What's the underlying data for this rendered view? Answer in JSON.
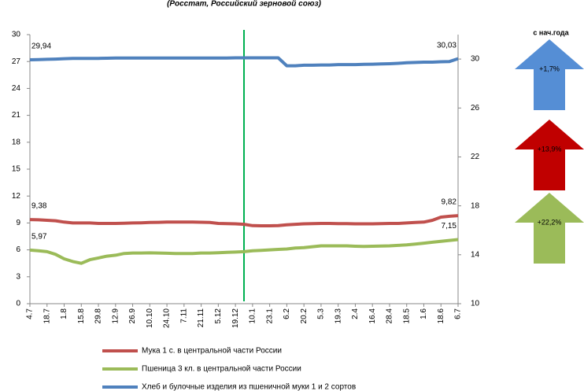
{
  "chart_data": {
    "type": "line",
    "subtitle": "(Росстат, Российский зерновой союз)",
    "categories": [
      "4.7",
      null,
      "18.7",
      null,
      "1.8",
      null,
      "15.8",
      null,
      "29.8",
      null,
      "12.9",
      null,
      "26.9",
      null,
      "10.10",
      null,
      "24.10",
      null,
      "7.11",
      null,
      "21.11",
      null,
      "5.12",
      null,
      "19.12",
      null,
      "10.1",
      null,
      "23.1",
      null,
      "6.2",
      null,
      "20.2",
      null,
      "5.3",
      null,
      "19.3",
      null,
      "2.4",
      null,
      "16.4",
      null,
      "28.4",
      null,
      "18.5",
      null,
      "1.6",
      null,
      "18.6",
      null,
      "6.7"
    ],
    "ylim": [
      0,
      30
    ],
    "yticks": [
      0,
      3,
      6,
      9,
      12,
      15,
      18,
      21,
      24,
      27,
      30
    ],
    "y2lim": [
      10,
      32
    ],
    "y2ticks": [
      10,
      14,
      18,
      22,
      26,
      30
    ],
    "series": [
      {
        "name": "Мука 1 с. в центральной части России",
        "color": "#c0504d",
        "values": [
          9.38,
          9.35,
          9.3,
          9.25,
          9.1,
          9.0,
          9.0,
          9.0,
          8.95,
          8.95,
          8.95,
          8.97,
          9.0,
          9.02,
          9.05,
          9.07,
          9.1,
          9.1,
          9.1,
          9.1,
          9.08,
          9.05,
          8.95,
          8.92,
          8.9,
          8.85,
          8.7,
          8.68,
          8.68,
          8.7,
          8.8,
          8.85,
          8.9,
          8.92,
          8.95,
          8.95,
          8.93,
          8.92,
          8.9,
          8.9,
          8.9,
          8.92,
          8.95,
          8.95,
          9.0,
          9.05,
          9.1,
          9.3,
          9.65,
          9.75,
          9.82
        ],
        "value_labels": [
          "9,38",
          null,
          null,
          null,
          null,
          null,
          null,
          null,
          null,
          null,
          null,
          null,
          null,
          null,
          null,
          null,
          null,
          null,
          null,
          null,
          null,
          null,
          null,
          null,
          null,
          null,
          null,
          null,
          null,
          null,
          null,
          null,
          null,
          null,
          null,
          null,
          null,
          null,
          null,
          null,
          null,
          null,
          null,
          null,
          null,
          null,
          null,
          null,
          null,
          null,
          "9,82"
        ]
      },
      {
        "name": "Пшеница 3 кл. в центральной части России",
        "color": "#9bbb59",
        "values": [
          5.97,
          5.9,
          5.8,
          5.5,
          5.0,
          4.7,
          4.5,
          4.9,
          5.1,
          5.3,
          5.4,
          5.6,
          5.65,
          5.65,
          5.67,
          5.65,
          5.62,
          5.6,
          5.6,
          5.6,
          5.65,
          5.65,
          5.68,
          5.72,
          5.75,
          5.8,
          5.9,
          5.95,
          6.0,
          6.05,
          6.1,
          6.2,
          6.25,
          6.35,
          6.45,
          6.45,
          6.45,
          6.45,
          6.4,
          6.38,
          6.4,
          6.42,
          6.45,
          6.5,
          6.55,
          6.65,
          6.75,
          6.85,
          6.95,
          7.05,
          7.15
        ],
        "value_labels": [
          "5,97",
          null,
          null,
          null,
          null,
          null,
          null,
          null,
          null,
          null,
          null,
          null,
          null,
          null,
          null,
          null,
          null,
          null,
          null,
          null,
          null,
          null,
          null,
          null,
          null,
          null,
          null,
          null,
          null,
          null,
          null,
          null,
          null,
          null,
          null,
          null,
          null,
          null,
          null,
          null,
          null,
          null,
          null,
          null,
          null,
          null,
          null,
          null,
          null,
          null,
          "7,15"
        ]
      },
      {
        "name": "Хлеб и булочные изделия из пшеничной муки 1 и 2 сортов",
        "color": "#4f81bd",
        "axis": "y2",
        "values": [
          29.94,
          29.96,
          29.98,
          30.0,
          30.03,
          30.05,
          30.06,
          30.06,
          30.06,
          30.07,
          30.08,
          30.08,
          30.08,
          30.08,
          30.08,
          30.08,
          30.08,
          30.08,
          30.08,
          30.08,
          30.08,
          30.08,
          30.08,
          30.08,
          30.1,
          30.1,
          30.1,
          30.1,
          30.1,
          30.1,
          29.45,
          29.45,
          29.5,
          29.5,
          29.52,
          29.52,
          29.55,
          29.55,
          29.55,
          29.57,
          29.58,
          29.6,
          29.62,
          29.65,
          29.7,
          29.72,
          29.75,
          29.75,
          29.78,
          29.8,
          30.03
        ],
        "value_labels": [
          "29,94",
          null,
          null,
          null,
          null,
          null,
          null,
          null,
          null,
          null,
          null,
          null,
          null,
          null,
          null,
          null,
          null,
          null,
          null,
          null,
          null,
          null,
          null,
          null,
          null,
          null,
          null,
          null,
          null,
          null,
          null,
          null,
          null,
          null,
          null,
          null,
          null,
          null,
          null,
          null,
          null,
          null,
          null,
          null,
          null,
          null,
          null,
          null,
          null,
          null,
          "30,03"
        ]
      }
    ],
    "changes_title": "с нач.года",
    "changes": [
      {
        "label": "+1,7%",
        "color": "#558ed5"
      },
      {
        "label": "+13,9%",
        "color": "#c00000"
      },
      {
        "label": "+22,2%",
        "color": "#9bbb59"
      }
    ]
  }
}
